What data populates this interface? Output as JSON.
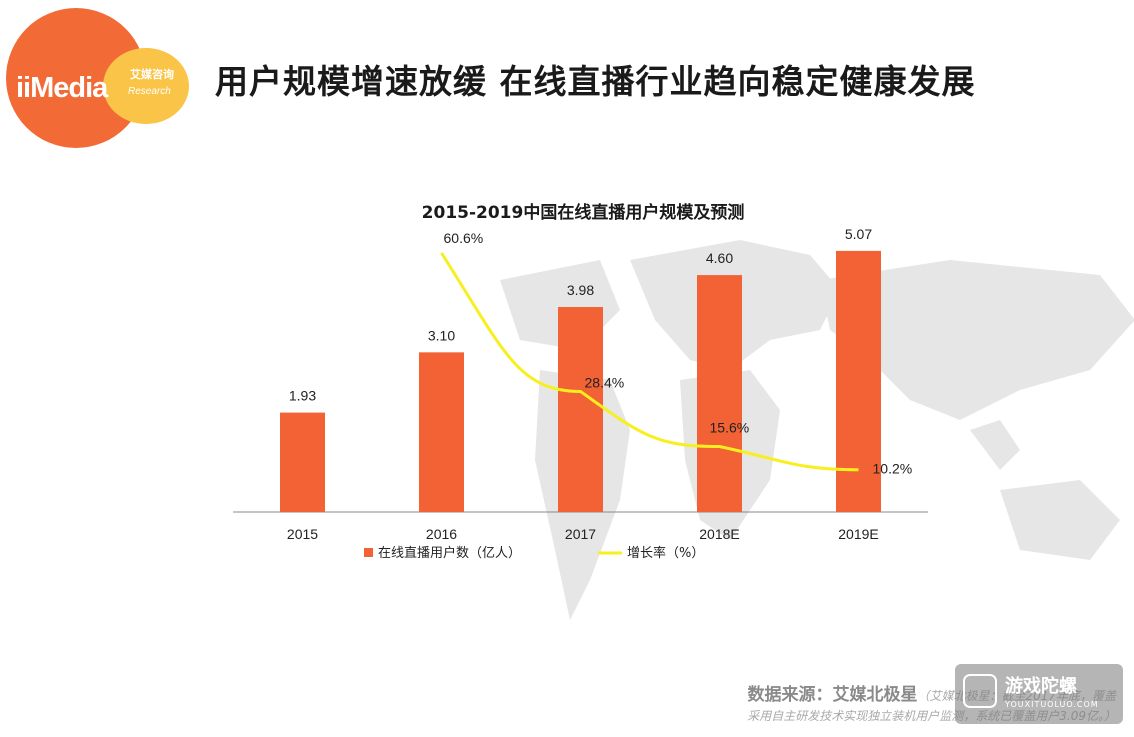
{
  "brand": {
    "mark": "iiMedia",
    "cn": "艾媒咨询",
    "en": "Research"
  },
  "header": {
    "title": "用户规模增速放缓 在线直播行业趋向稳定健康发展"
  },
  "chart_data": {
    "type": "bar",
    "title": "2015-2019中国在线直播用户规模及预测",
    "categories": [
      "2015",
      "2016",
      "2017",
      "2018E",
      "2019E"
    ],
    "series": [
      {
        "name": "在线直播用户数（亿人）",
        "type": "bar",
        "color": "#f26234",
        "values": [
          1.93,
          3.1,
          3.98,
          4.6,
          5.07
        ],
        "labels": [
          "1.93",
          "3.10",
          "3.98",
          "4.60",
          "5.07"
        ]
      },
      {
        "name": "增长率（%）",
        "type": "line",
        "color": "#f7ef1f",
        "values": [
          null,
          60.6,
          28.4,
          15.6,
          10.2
        ],
        "labels": [
          "",
          "60.6%",
          "28.4%",
          "15.6%",
          "10.2%"
        ]
      }
    ],
    "legend_position": "bottom",
    "grid": false
  },
  "footer": {
    "source_label": "数据来源：艾媒北极星",
    "note_line1": "（艾媒北极星：截至2017年底，覆盖",
    "note_line2": "采用自主研发技术实现独立装机用户监测，系统已覆盖用户3.09亿。）"
  },
  "watermark": {
    "title": "游戏陀螺",
    "sub": "YOUXITUOLUO.COM"
  }
}
